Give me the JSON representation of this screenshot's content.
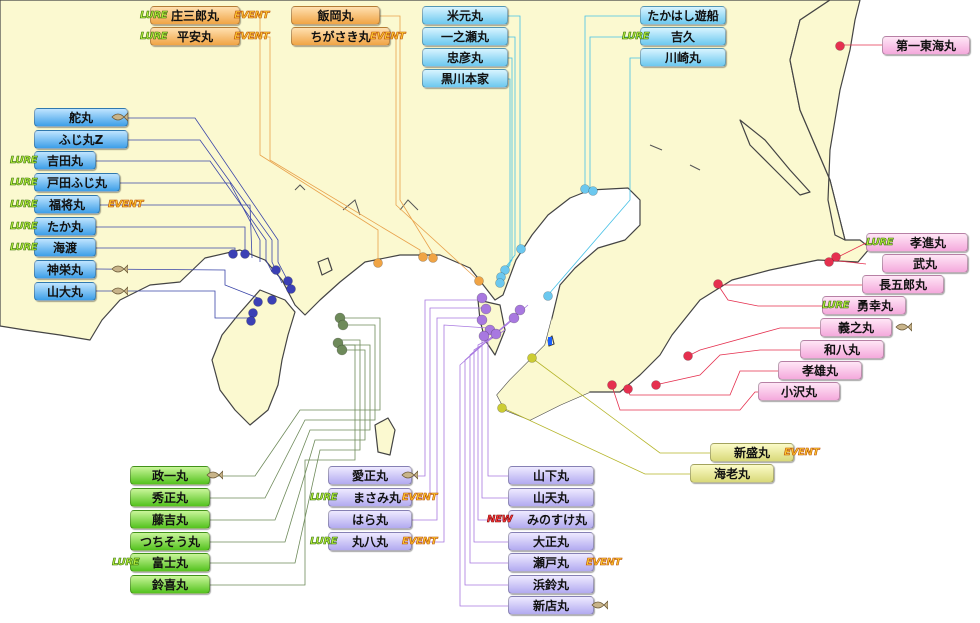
{
  "labels": {
    "blue": [
      "舵丸",
      "ふじ丸Z",
      "吉田丸",
      "戸田ふじ丸",
      "福将丸",
      "たか丸",
      "海渡",
      "神栄丸",
      "山大丸"
    ],
    "orange": [
      "庄三郎丸",
      "平安丸",
      "飯岡丸",
      "ちがさき丸"
    ],
    "cyan": [
      "米元丸",
      "一之瀬丸",
      "忠彦丸",
      "黒川本家",
      "たかはし遊船",
      "吉久",
      "川崎丸"
    ],
    "pink": [
      "第一東海丸",
      "孝進丸",
      "武丸",
      "長五郎丸",
      "勇幸丸",
      "義之丸",
      "和八丸",
      "孝雄丸",
      "小沢丸"
    ],
    "green": [
      "政一丸",
      "秀正丸",
      "藤吉丸",
      "つちそう丸",
      "富士丸",
      "鈴喜丸"
    ],
    "purple_left": [
      "愛正丸",
      "まさみ丸",
      "はら丸",
      "丸八丸"
    ],
    "purple_right": [
      "山下丸",
      "山天丸",
      "みのすけ丸",
      "大正丸",
      "瀬戸丸",
      "浜鈴丸",
      "新店丸"
    ],
    "olive": [
      "新盛丸",
      "海老丸"
    ]
  },
  "badges": {
    "lure": "LURE",
    "event": "EVENT",
    "new": "NEW"
  },
  "colors": {
    "land": "#fbf9d0",
    "blue_line": "#3a45a8",
    "orange_line": "#e8a24c",
    "cyan_line": "#45c0e6",
    "pink_line": "#e5304f",
    "green_line": "#6e8a5a",
    "purple_line": "#a878e0",
    "olive_line": "#b5b52a"
  }
}
